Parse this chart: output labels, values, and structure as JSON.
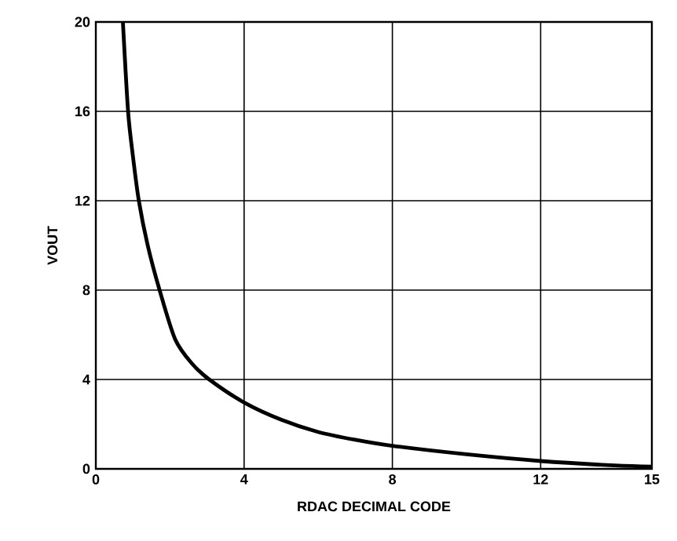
{
  "chart_data": {
    "type": "line",
    "xlabel": "RDAC DECIMAL CODE",
    "ylabel": "VOUT",
    "x": [
      0.73,
      0.87,
      1.0,
      1.16,
      1.4,
      1.72,
      2.14,
      2.6,
      3.06,
      4,
      5,
      6,
      7,
      8,
      10,
      12,
      14,
      15
    ],
    "series": [
      {
        "color": "#000000",
        "values": [
          20,
          16,
          14,
          12,
          10,
          8,
          5.8,
          4.7,
          4,
          2.97,
          2.2,
          1.65,
          1.3,
          1.03,
          0.65,
          0.35,
          0.15,
          0.1
        ]
      }
    ],
    "xlim": [
      0,
      15
    ],
    "xticks": [
      0,
      4,
      8,
      12,
      15
    ],
    "ylim": [
      0,
      20
    ],
    "yticks": [
      0,
      4,
      8,
      12,
      16,
      20
    ],
    "grid": true,
    "marker": "none",
    "line_style": "solid"
  }
}
